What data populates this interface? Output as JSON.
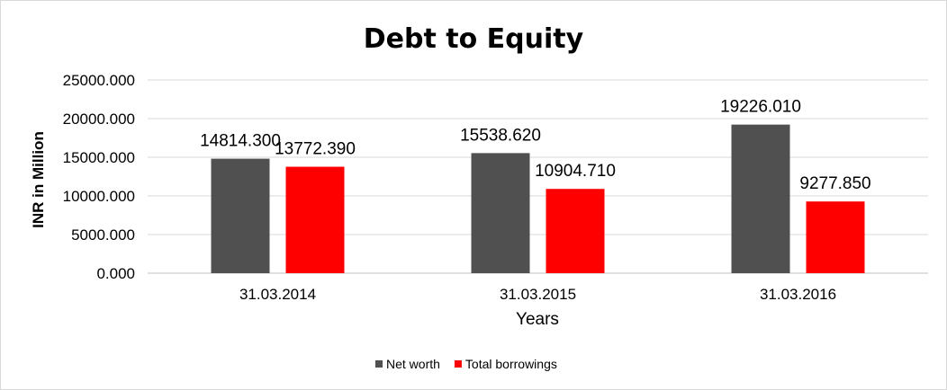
{
  "chart_data": {
    "type": "bar",
    "title": "Debt to Equity",
    "xlabel": "Years",
    "ylabel": "INR in Million",
    "categories": [
      "31.03.2014",
      "31.03.2015",
      "31.03.2016"
    ],
    "series": [
      {
        "name": "Net worth",
        "color": "#505050",
        "values": [
          14814.3,
          15538.62,
          19226.01
        ],
        "labels": [
          "14814.300",
          "15538.620",
          "19226.010"
        ]
      },
      {
        "name": "Total borrowings",
        "color": "#ff0000",
        "values": [
          13772.39,
          10904.71,
          9277.85
        ],
        "labels": [
          "13772.390",
          "10904.710",
          "9277.850"
        ]
      }
    ],
    "ylim": [
      0,
      25000
    ],
    "yticks": [
      "0.000",
      "5000.000",
      "10000.000",
      "15000.000",
      "20000.000",
      "25000.000"
    ],
    "ytick_values": [
      0,
      5000,
      10000,
      15000,
      20000,
      25000
    ],
    "grid": true,
    "legend": "bottom"
  }
}
